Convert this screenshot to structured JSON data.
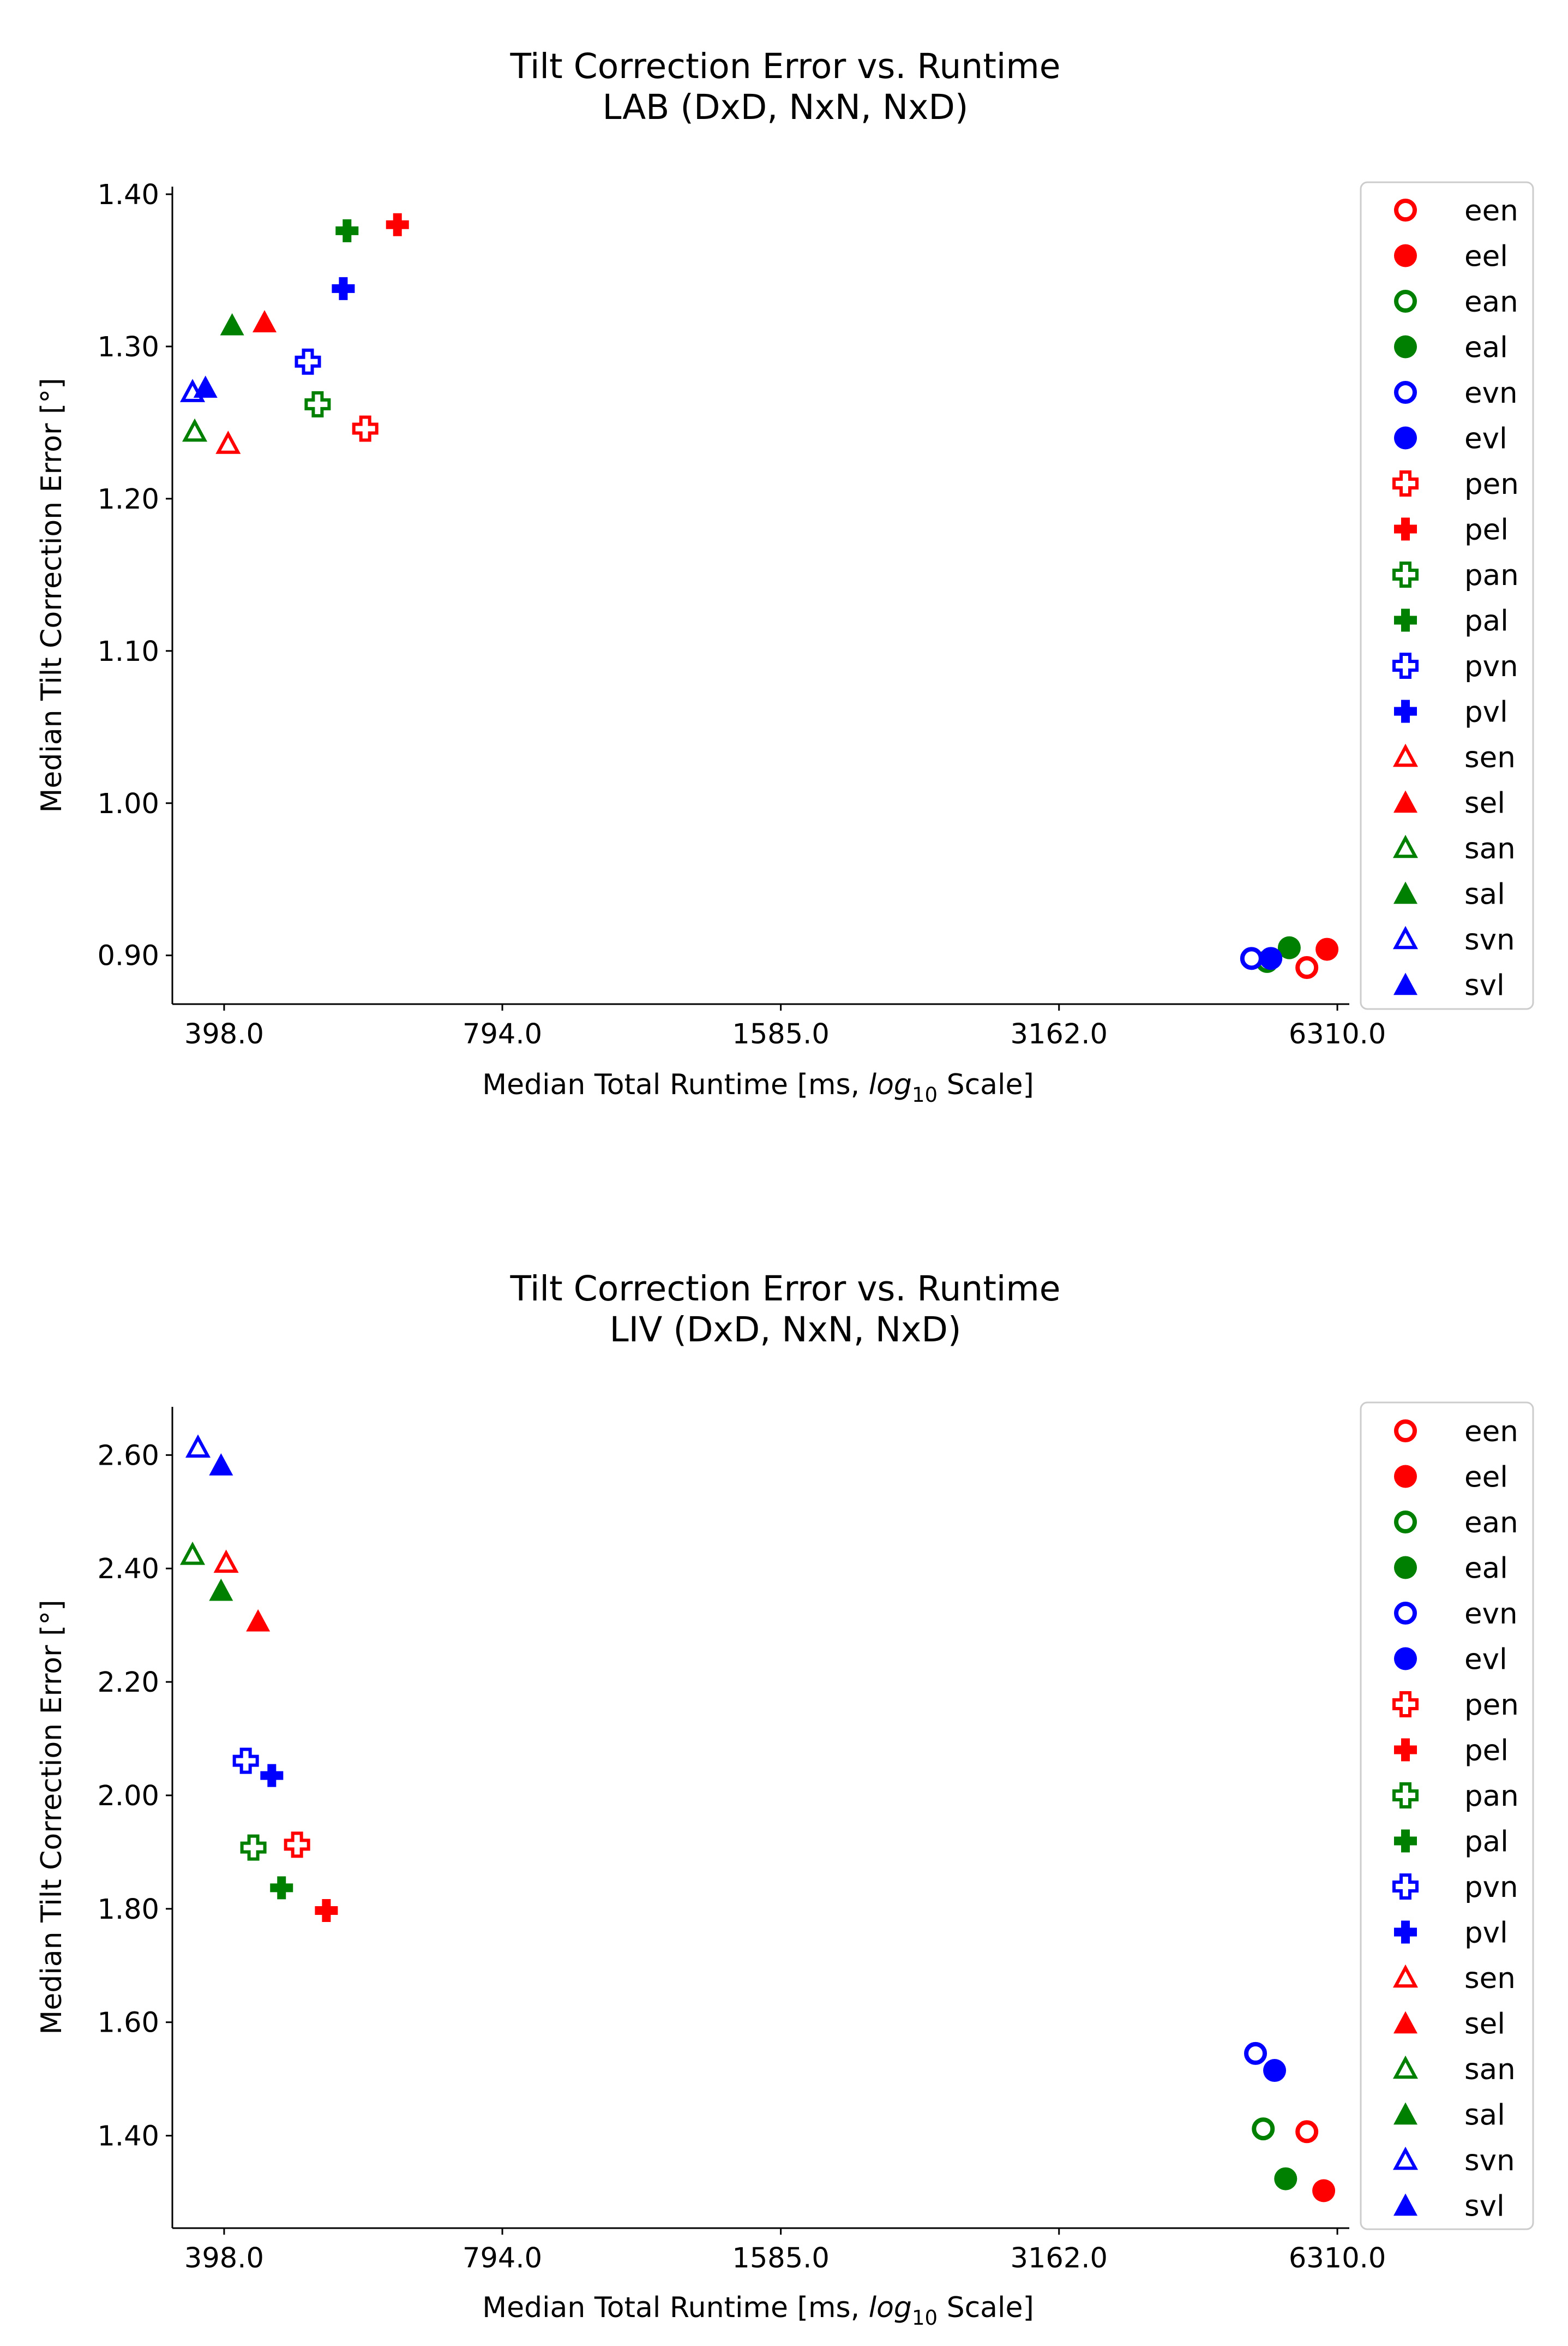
{
  "charts": [
    {
      "title_line1": "Tilt Correction Error vs. Runtime",
      "title_line2": "LAB (DxD, NxN, NxD)",
      "xlabel_prefix": "Median Total Runtime [ms, ",
      "xlabel_log": "log",
      "xlabel_sub": "10",
      "xlabel_suffix": " Scale]",
      "ylabel": "Median Tilt Correction Error [°]",
      "xticks": [
        "398.0",
        "794.0",
        "1585.0",
        "3162.0",
        "6310.0"
      ],
      "yticks": [
        "0.90",
        "1.00",
        "1.10",
        "1.20",
        "1.30",
        "1.40"
      ]
    },
    {
      "title_line1": "Tilt Correction Error vs. Runtime",
      "title_line2": "LIV (DxD, NxN, NxD)",
      "xlabel_prefix": "Median Total Runtime [ms, ",
      "xlabel_log": "log",
      "xlabel_sub": "10",
      "xlabel_suffix": " Scale]",
      "ylabel": "Median Tilt Correction Error [°]",
      "xticks": [
        "398.0",
        "794.0",
        "1585.0",
        "3162.0",
        "6310.0"
      ],
      "yticks": [
        "1.40",
        "1.60",
        "1.80",
        "2.00",
        "2.20",
        "2.40",
        "2.60"
      ]
    }
  ],
  "legend": [
    {
      "label": "een",
      "marker": "circle",
      "fill": "open",
      "color": "#ff0000"
    },
    {
      "label": "eel",
      "marker": "circle",
      "fill": "filled",
      "color": "#ff0000"
    },
    {
      "label": "ean",
      "marker": "circle",
      "fill": "open",
      "color": "#008000"
    },
    {
      "label": "eal",
      "marker": "circle",
      "fill": "filled",
      "color": "#008000"
    },
    {
      "label": "evn",
      "marker": "circle",
      "fill": "open",
      "color": "#0000ff"
    },
    {
      "label": "evl",
      "marker": "circle",
      "fill": "filled",
      "color": "#0000ff"
    },
    {
      "label": "pen",
      "marker": "plus",
      "fill": "open",
      "color": "#ff0000"
    },
    {
      "label": "pel",
      "marker": "plus",
      "fill": "filled",
      "color": "#ff0000"
    },
    {
      "label": "pan",
      "marker": "plus",
      "fill": "open",
      "color": "#008000"
    },
    {
      "label": "pal",
      "marker": "plus",
      "fill": "filled",
      "color": "#008000"
    },
    {
      "label": "pvn",
      "marker": "plus",
      "fill": "open",
      "color": "#0000ff"
    },
    {
      "label": "pvl",
      "marker": "plus",
      "fill": "filled",
      "color": "#0000ff"
    },
    {
      "label": "sen",
      "marker": "triangle",
      "fill": "open",
      "color": "#ff0000"
    },
    {
      "label": "sel",
      "marker": "triangle",
      "fill": "filled",
      "color": "#ff0000"
    },
    {
      "label": "san",
      "marker": "triangle",
      "fill": "open",
      "color": "#008000"
    },
    {
      "label": "sal",
      "marker": "triangle",
      "fill": "filled",
      "color": "#008000"
    },
    {
      "label": "svn",
      "marker": "triangle",
      "fill": "open",
      "color": "#0000ff"
    },
    {
      "label": "svl",
      "marker": "triangle",
      "fill": "filled",
      "color": "#0000ff"
    }
  ],
  "chart_data": [
    {
      "type": "scatter",
      "title": "Tilt Correction Error vs. Runtime\nLAB (DxD, NxN, NxD)",
      "xlabel": "Median Total Runtime [ms, log10 Scale]",
      "ylabel": "Median Tilt Correction Error [°]",
      "xscale": "log10",
      "xlim": [
        350,
        6500
      ],
      "ylim": [
        0.868,
        1.405
      ],
      "grid": false,
      "legend_position": "outside right",
      "series": [
        {
          "name": "een",
          "x": 5850,
          "y": 0.892
        },
        {
          "name": "eel",
          "x": 6150,
          "y": 0.904
        },
        {
          "name": "ean",
          "x": 5300,
          "y": 0.896
        },
        {
          "name": "eal",
          "x": 5600,
          "y": 0.905
        },
        {
          "name": "evn",
          "x": 5100,
          "y": 0.898
        },
        {
          "name": "evl",
          "x": 5350,
          "y": 0.898
        },
        {
          "name": "pen",
          "x": 565,
          "y": 1.246
        },
        {
          "name": "pel",
          "x": 612,
          "y": 1.38
        },
        {
          "name": "pan",
          "x": 502,
          "y": 1.262
        },
        {
          "name": "pal",
          "x": 540,
          "y": 1.376
        },
        {
          "name": "pvn",
          "x": 490,
          "y": 1.29
        },
        {
          "name": "pvl",
          "x": 535,
          "y": 1.338
        },
        {
          "name": "sen",
          "x": 402,
          "y": 1.236
        },
        {
          "name": "sel",
          "x": 440,
          "y": 1.316
        },
        {
          "name": "san",
          "x": 370,
          "y": 1.244
        },
        {
          "name": "sal",
          "x": 406,
          "y": 1.314
        },
        {
          "name": "svn",
          "x": 368,
          "y": 1.27
        },
        {
          "name": "svl",
          "x": 380,
          "y": 1.273
        }
      ]
    },
    {
      "type": "scatter",
      "title": "Tilt Correction Error vs. Runtime\nLIV (DxD, NxN, NxD)",
      "xlabel": "Median Total Runtime [ms, log10 Scale]",
      "ylabel": "Median Tilt Correction Error [°]",
      "xscale": "log10",
      "xlim": [
        350,
        6500
      ],
      "ylim": [
        1.237,
        2.685
      ],
      "grid": false,
      "legend_position": "outside right",
      "series": [
        {
          "name": "een",
          "x": 5850,
          "y": 1.407
        },
        {
          "name": "eel",
          "x": 6100,
          "y": 1.303
        },
        {
          "name": "ean",
          "x": 5250,
          "y": 1.412
        },
        {
          "name": "eal",
          "x": 5550,
          "y": 1.324
        },
        {
          "name": "evn",
          "x": 5150,
          "y": 1.545
        },
        {
          "name": "evl",
          "x": 5400,
          "y": 1.515
        },
        {
          "name": "pen",
          "x": 477,
          "y": 1.913
        },
        {
          "name": "pel",
          "x": 513,
          "y": 1.797
        },
        {
          "name": "pan",
          "x": 428,
          "y": 1.908
        },
        {
          "name": "pal",
          "x": 459,
          "y": 1.837
        },
        {
          "name": "pvn",
          "x": 420,
          "y": 2.061
        },
        {
          "name": "pvl",
          "x": 448,
          "y": 2.035
        },
        {
          "name": "sen",
          "x": 400,
          "y": 2.41
        },
        {
          "name": "sel",
          "x": 433,
          "y": 2.307
        },
        {
          "name": "san",
          "x": 368,
          "y": 2.424
        },
        {
          "name": "sal",
          "x": 395,
          "y": 2.361
        },
        {
          "name": "svn",
          "x": 373,
          "y": 2.613
        },
        {
          "name": "svl",
          "x": 395,
          "y": 2.582
        }
      ]
    }
  ]
}
